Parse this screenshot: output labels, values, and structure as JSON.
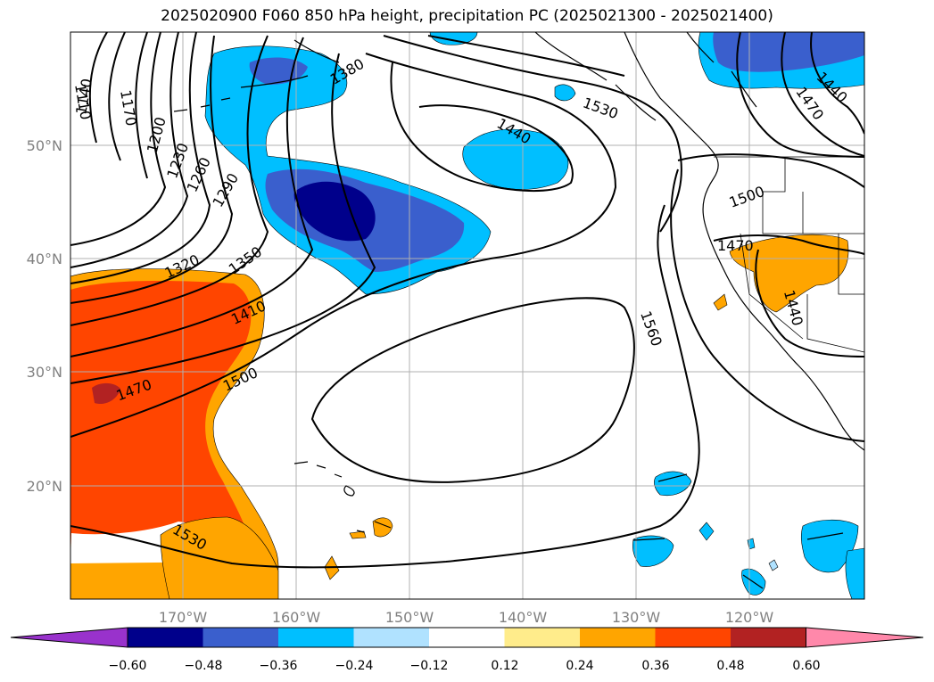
{
  "chart_data": {
    "type": "contour-map",
    "title": "2025020900 F060 850 hPa height, precipitation PC (2025021300 - 2025021400)",
    "x_ticks": [
      "170°W",
      "160°W",
      "150°W",
      "140°W",
      "130°W",
      "120°W"
    ],
    "y_ticks": [
      "50°N",
      "40°N",
      "30°N",
      "20°N"
    ],
    "colorbar": {
      "ticks": [
        "−0.60",
        "−0.48",
        "−0.36",
        "−0.24",
        "−0.12",
        "0.12",
        "0.24",
        "0.36",
        "0.48",
        "0.60"
      ],
      "colors": [
        "#9932cc",
        "#00008b",
        "#3a5fcd",
        "#00bfff",
        "#b0e2ff",
        "#ffffff",
        "#ffec8b",
        "#ffa500",
        "#ff4500",
        "#b22222",
        "#ff88aa"
      ]
    },
    "contour_labels": [
      "1110",
      "1140",
      "1170",
      "1200",
      "1230",
      "1260",
      "1290",
      "1320",
      "1350",
      "1380",
      "1410",
      "1440",
      "1470",
      "1500",
      "1530",
      "1560",
      "1440",
      "1470",
      "1500",
      "1530",
      "1440",
      "1470",
      "1500",
      "1470",
      "1440",
      "1560"
    ]
  }
}
